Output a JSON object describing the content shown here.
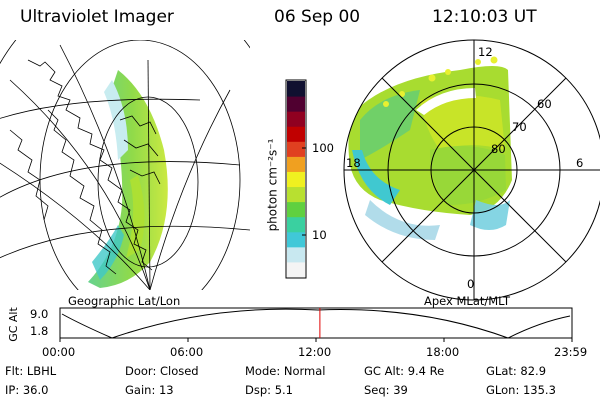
{
  "header": {
    "instrument": "Ultraviolet Imager",
    "date": "06 Sep 00",
    "time": "12:10:03 UT"
  },
  "colorbar": {
    "label": "photon cm⁻²s⁻¹",
    "ticks": [
      "100",
      "10"
    ],
    "colors": [
      "#f4f4f4",
      "#c8e8f0",
      "#40c8d8",
      "#3ad0a0",
      "#60d040",
      "#b8e030",
      "#f0f020",
      "#f0a020",
      "#e04020",
      "#c00000",
      "#900020",
      "#500030",
      "#101030"
    ]
  },
  "geo_map": {
    "label": "Geographic Lat/Lon",
    "icon": "globe-projection"
  },
  "polar_plot": {
    "label": "Apex MLat/MLT",
    "lat_labels": [
      "60",
      "70",
      "80"
    ],
    "mlt_labels": {
      "top": "12",
      "left": "18",
      "right": "6",
      "bottom": "0"
    }
  },
  "altitude_plot": {
    "ylabel": "GC Alt",
    "y_ticks": [
      "9.0",
      "1.8"
    ],
    "x_ticks": [
      "00:00",
      "06:00",
      "12:00",
      "18:00",
      "23:59"
    ],
    "current_time_fraction": 0.5076,
    "marker_color": "#e00000"
  },
  "info_rows": [
    [
      {
        "label": "Flt:",
        "value": "LBHL"
      },
      {
        "label": "Door:",
        "value": "Closed"
      },
      {
        "label": "Mode:",
        "value": "Normal"
      },
      {
        "label": "GC Alt:",
        "value": "9.4 Re"
      },
      {
        "label": "GLat:",
        "value": "82.9"
      }
    ],
    [
      {
        "label": "IP:",
        "value": "36.0"
      },
      {
        "label": "Gain:",
        "value": "13"
      },
      {
        "label": "Dsp:",
        "value": "5.1"
      },
      {
        "label": "Seq:",
        "value": "39"
      },
      {
        "label": "GLon:",
        "value": "135.3"
      }
    ]
  ]
}
